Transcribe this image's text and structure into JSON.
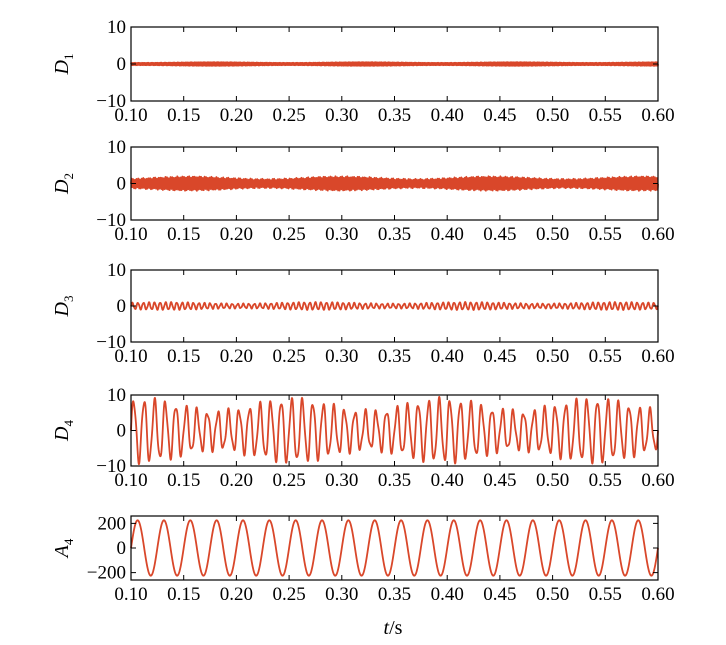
{
  "chart_data": [
    {
      "type": "line",
      "ylabel_main": "D",
      "ylabel_sub": "1",
      "xlim": [
        0.1,
        0.6
      ],
      "ylim": [
        -10,
        10
      ],
      "yticks": [
        10,
        0,
        -10
      ],
      "ytick_labels": [
        "10",
        "0",
        "−10"
      ],
      "xticks": [
        0.1,
        0.15,
        0.2,
        0.25,
        0.3,
        0.35,
        0.4,
        0.45,
        0.5,
        0.55,
        0.6
      ],
      "xtick_labels": [
        "0.10",
        "0.15",
        "0.20",
        "0.25",
        "0.30",
        "0.35",
        "0.40",
        "0.45",
        "0.50",
        "0.55",
        "0.60"
      ],
      "series": [
        {
          "shape": "oscillation",
          "amplitude": 0.5,
          "frequency_hz": 800,
          "color": "#d9472a"
        }
      ]
    },
    {
      "type": "line",
      "ylabel_main": "D",
      "ylabel_sub": "2",
      "xlim": [
        0.1,
        0.6
      ],
      "ylim": [
        -10,
        10
      ],
      "yticks": [
        10,
        0,
        -10
      ],
      "ytick_labels": [
        "10",
        "0",
        "−10"
      ],
      "xticks": [
        0.1,
        0.15,
        0.2,
        0.25,
        0.3,
        0.35,
        0.4,
        0.45,
        0.5,
        0.55,
        0.6
      ],
      "xtick_labels": [
        "0.10",
        "0.15",
        "0.20",
        "0.25",
        "0.30",
        "0.35",
        "0.40",
        "0.45",
        "0.50",
        "0.55",
        "0.60"
      ],
      "series": [
        {
          "shape": "oscillation",
          "amplitude": 1.8,
          "frequency_hz": 620,
          "color": "#d9472a"
        }
      ]
    },
    {
      "type": "line",
      "ylabel_main": "D",
      "ylabel_sub": "3",
      "xlim": [
        0.1,
        0.6
      ],
      "ylim": [
        -10,
        10
      ],
      "yticks": [
        10,
        0,
        -10
      ],
      "ytick_labels": [
        "10",
        "0",
        "−10"
      ],
      "xticks": [
        0.1,
        0.15,
        0.2,
        0.25,
        0.3,
        0.35,
        0.4,
        0.45,
        0.5,
        0.55,
        0.6
      ],
      "xtick_labels": [
        "0.10",
        "0.15",
        "0.20",
        "0.25",
        "0.30",
        "0.35",
        "0.40",
        "0.45",
        "0.50",
        "0.55",
        "0.60"
      ],
      "series": [
        {
          "shape": "oscillation",
          "amplitude": 1.0,
          "frequency_hz": 190,
          "color": "#d9472a"
        }
      ]
    },
    {
      "type": "line",
      "ylabel_main": "D",
      "ylabel_sub": "4",
      "xlim": [
        0.1,
        0.6
      ],
      "ylim": [
        -10,
        10
      ],
      "yticks": [
        10,
        0,
        -10
      ],
      "ytick_labels": [
        "10",
        "0",
        "−10"
      ],
      "xticks": [
        0.1,
        0.15,
        0.2,
        0.25,
        0.3,
        0.35,
        0.4,
        0.45,
        0.5,
        0.55,
        0.6
      ],
      "xtick_labels": [
        "0.10",
        "0.15",
        "0.20",
        "0.25",
        "0.30",
        "0.35",
        "0.40",
        "0.45",
        "0.50",
        "0.55",
        "0.60"
      ],
      "series": [
        {
          "shape": "oscillation",
          "amplitude": 8.5,
          "frequency_hz": 100,
          "color": "#d9472a"
        }
      ]
    },
    {
      "type": "line",
      "ylabel_main": "A",
      "ylabel_sub": "4",
      "xlim": [
        0.1,
        0.6
      ],
      "ylim": [
        -260,
        260
      ],
      "yticks": [
        200,
        0,
        -200
      ],
      "ytick_labels": [
        "200",
        "0",
        "−200"
      ],
      "xticks": [
        0.1,
        0.15,
        0.2,
        0.25,
        0.3,
        0.35,
        0.4,
        0.45,
        0.5,
        0.55,
        0.6
      ],
      "xtick_labels": [
        "0.10",
        "0.15",
        "0.20",
        "0.25",
        "0.30",
        "0.35",
        "0.40",
        "0.45",
        "0.50",
        "0.55",
        "0.60"
      ],
      "series": [
        {
          "shape": "sine",
          "amplitude": 225,
          "frequency_hz": 40,
          "color": "#d9472a"
        }
      ]
    }
  ],
  "xlabel_italic": "t",
  "xlabel_rest": "/s"
}
